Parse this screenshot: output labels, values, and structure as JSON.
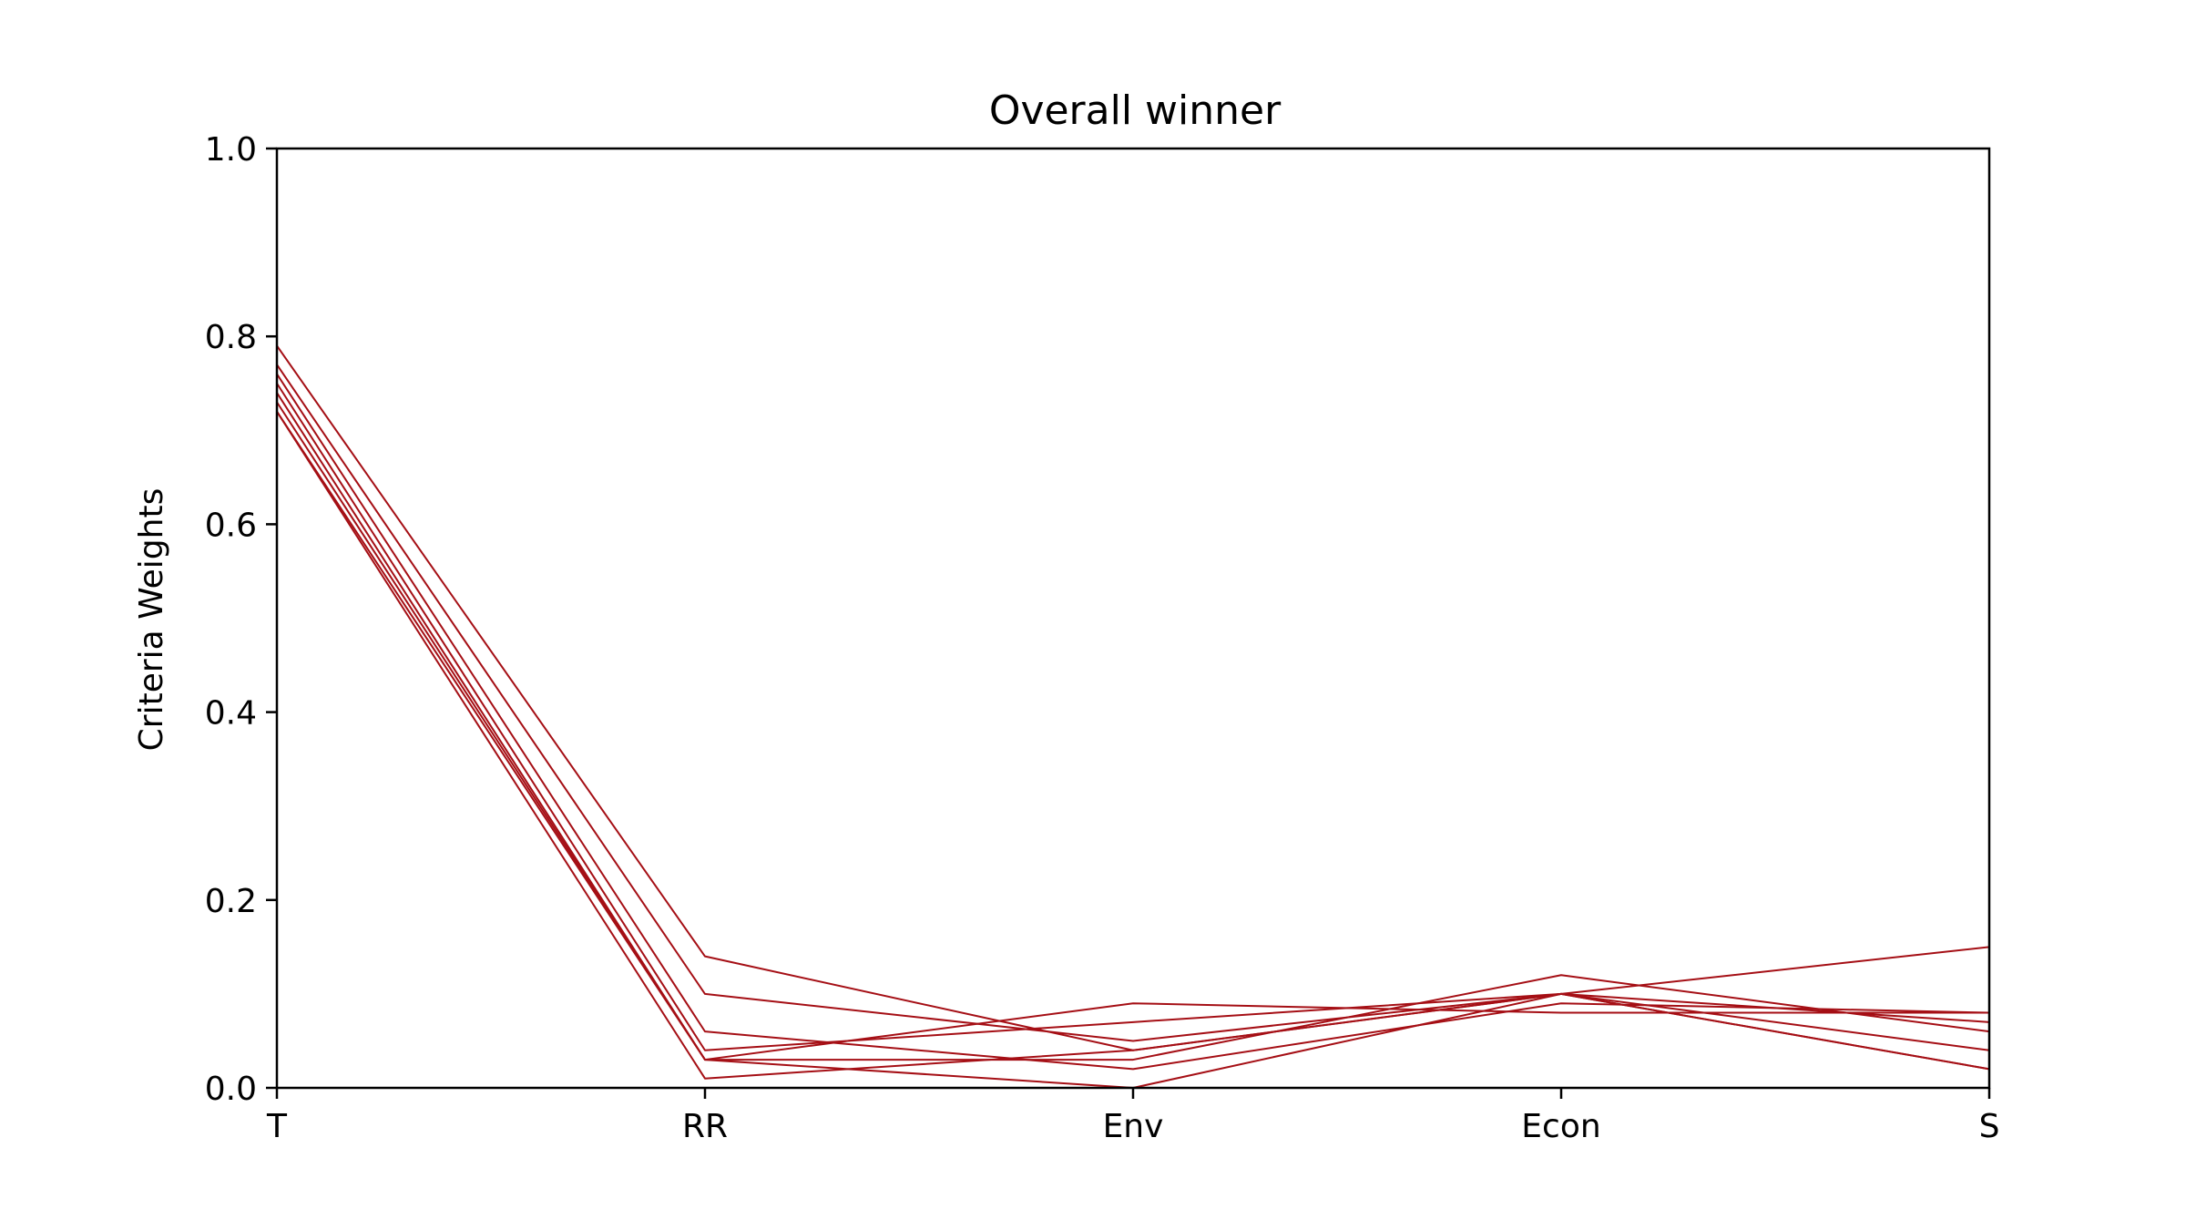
{
  "chart_data": {
    "type": "line",
    "title": "Overall winner",
    "xlabel": "",
    "ylabel": "Criteria Weights",
    "categories": [
      "T",
      "RR",
      "Env",
      "Econ",
      "S"
    ],
    "ylim": [
      0,
      1
    ],
    "yticks": [
      "0.0",
      "0.2",
      "0.4",
      "0.6",
      "0.8",
      "1.0"
    ],
    "grid": false,
    "line_color": "#a50f15",
    "series": [
      {
        "values": [
          0.79,
          0.14,
          0.04,
          0.1,
          0.02
        ]
      },
      {
        "values": [
          0.77,
          0.1,
          0.05,
          0.1,
          0.04
        ]
      },
      {
        "values": [
          0.76,
          0.06,
          0.02,
          0.09,
          0.08
        ]
      },
      {
        "values": [
          0.75,
          0.04,
          0.07,
          0.1,
          0.02
        ]
      },
      {
        "values": [
          0.74,
          0.03,
          0.09,
          0.08,
          0.08
        ]
      },
      {
        "values": [
          0.73,
          0.03,
          0.03,
          0.12,
          0.06
        ]
      },
      {
        "values": [
          0.72,
          0.01,
          0.04,
          0.1,
          0.07
        ]
      },
      {
        "values": [
          0.72,
          0.03,
          0.0,
          0.1,
          0.15
        ]
      }
    ]
  }
}
